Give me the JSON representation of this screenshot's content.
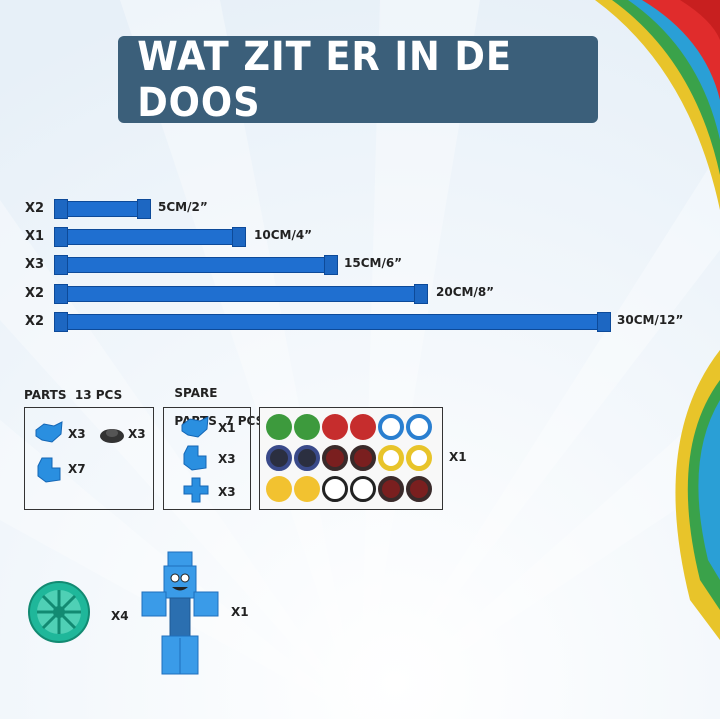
{
  "title": "WAT ZIT ER IN DE DOOS",
  "tubes": [
    {
      "qty": "X2",
      "length": "5CM/2”"
    },
    {
      "qty": "X1",
      "length": "10CM/4”"
    },
    {
      "qty": "X3",
      "length": "15CM/6”"
    },
    {
      "qty": "X2",
      "length": "20CM/8”"
    },
    {
      "qty": "X2",
      "length": "30CM/12”"
    }
  ],
  "parts": {
    "label": "PARTS  13 PCS",
    "items": [
      {
        "icon": "blue-connector-icon",
        "qty": "X3"
      },
      {
        "icon": "black-base-icon",
        "qty": "X3"
      },
      {
        "icon": "blue-joint-icon",
        "qty": "X7"
      }
    ]
  },
  "spare": {
    "label_line1": "SPARE",
    "label_line2": "PARTS  7 PCS",
    "items": [
      {
        "icon": "blue-connector-icon",
        "qty": "X1"
      },
      {
        "icon": "blue-joint-icon",
        "qty": "X3"
      },
      {
        "icon": "blue-cross-icon",
        "qty": "X3"
      }
    ]
  },
  "stickers": {
    "qty": "X1"
  },
  "wheel": {
    "qty": "X4"
  },
  "robot": {
    "qty": "X1"
  },
  "colors": {
    "title_bg": "#3b5f7a",
    "tube": "#1f6fd0",
    "wheel": "#1fb79a"
  }
}
